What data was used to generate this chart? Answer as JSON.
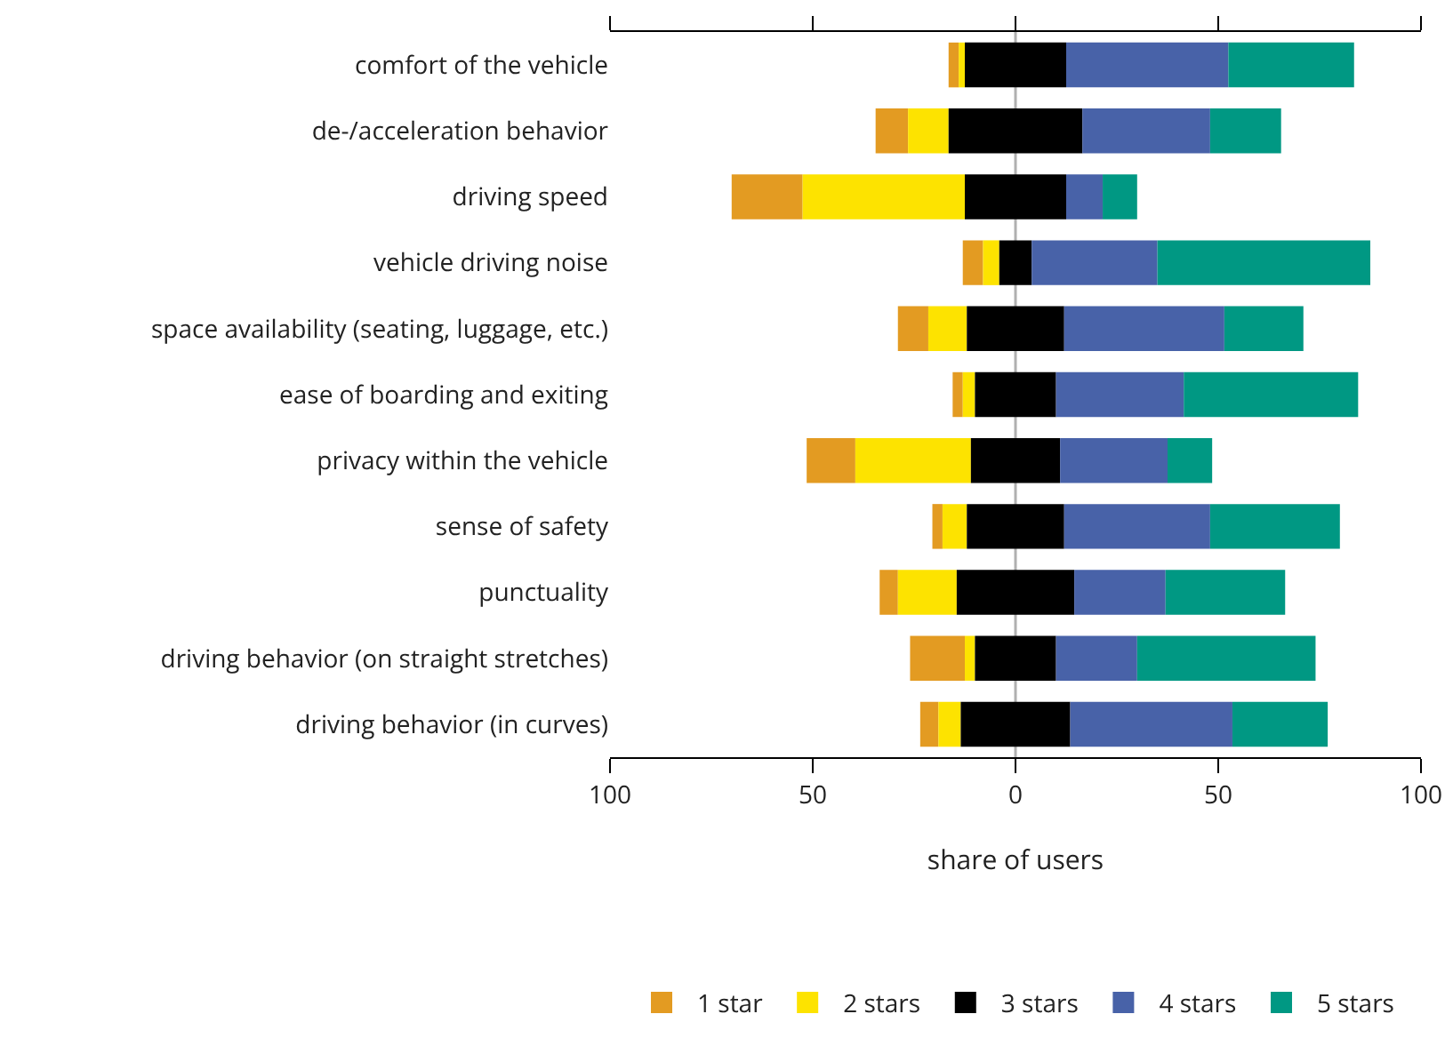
{
  "chart_data": {
    "type": "bar",
    "orientation": "horizontal",
    "xlabel": "share of users",
    "categories": [
      "comfort of the vehicle",
      "de-/acceleration behavior",
      "driving speed",
      "vehicle driving noise",
      "space availability (seating, luggage, etc.)",
      "ease of boarding and exiting",
      "privacy within the vehicle",
      "sense of safety",
      "punctuality",
      "driving behavior (on straight stretches)",
      "driving behavior (in curves)"
    ],
    "series": [
      {
        "name": "1 star",
        "color": "#e39b22",
        "base": [
          -16.5,
          -34.5,
          -70,
          -13,
          -29,
          -15.5,
          -51.5,
          -20.5,
          -33.5,
          -26,
          -23.5
        ],
        "values": [
          2.5,
          8,
          17.5,
          5,
          7.5,
          2.5,
          12,
          2.5,
          4.5,
          13.5,
          4.5
        ]
      },
      {
        "name": "2 stars",
        "color": "#fde300",
        "base": [
          -14,
          -26.5,
          -52.5,
          -8,
          -21.5,
          -13,
          -39.5,
          -18,
          -29,
          -12.5,
          -19
        ],
        "values": [
          1.5,
          10,
          40,
          4,
          9.5,
          3,
          28.5,
          6,
          14.5,
          2.5,
          5.5
        ]
      },
      {
        "name": "3 stars",
        "color": "#000000",
        "base": [
          -12.5,
          -16.5,
          -12.5,
          -4,
          -12,
          -10,
          -11,
          -12,
          -14.5,
          -10,
          -13.5
        ],
        "values": [
          25,
          33,
          25,
          8,
          24,
          20,
          22,
          24,
          29,
          20,
          27
        ]
      },
      {
        "name": "4 stars",
        "color": "#4862a8",
        "base": [
          12.5,
          16.5,
          12.5,
          4,
          12,
          10,
          11,
          12,
          14.5,
          10,
          13.5
        ],
        "values": [
          40,
          31.5,
          9,
          31,
          39.5,
          31.5,
          26.5,
          36,
          22.5,
          20,
          40
        ]
      },
      {
        "name": "5 stars",
        "color": "#009883",
        "base": [
          52.5,
          48,
          21.5,
          35,
          51.5,
          41.5,
          37.5,
          48,
          37,
          30,
          53.5
        ],
        "values": [
          31,
          17.5,
          8.5,
          52.5,
          19.5,
          43,
          11,
          32,
          29.5,
          44,
          23.5
        ]
      }
    ],
    "xlim": [
      -100,
      100
    ],
    "xticks": [
      {
        "value": -100,
        "label": "100"
      },
      {
        "value": -50,
        "label": "50"
      },
      0,
      50,
      100
    ],
    "ref_lines": [
      {
        "axis": "x",
        "value": 0,
        "color": "#b0b0b0"
      }
    ],
    "grid": false,
    "legend": "bottom"
  }
}
